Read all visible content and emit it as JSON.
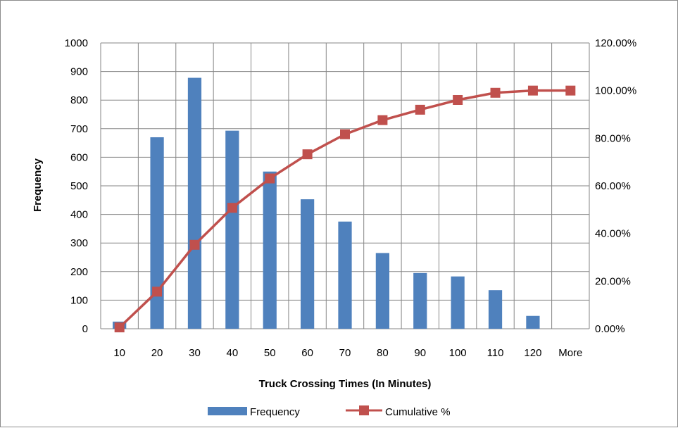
{
  "chart_data": {
    "type": "bar",
    "xlabel": "Truck Crossing Times (In Minutes)",
    "ylabel": "Frequency",
    "categories": [
      "10",
      "20",
      "30",
      "40",
      "50",
      "60",
      "70",
      "80",
      "90",
      "100",
      "110",
      "120",
      "More"
    ],
    "series": [
      {
        "name": "Frequency",
        "type": "bar",
        "axis": "left",
        "color": "#4f81bd",
        "values": [
          25,
          670,
          878,
          693,
          550,
          453,
          375,
          265,
          195,
          183,
          135,
          45,
          0
        ]
      },
      {
        "name": "Cumulative %",
        "type": "line",
        "axis": "right",
        "color": "#c0504d",
        "marker": "square",
        "values": [
          0.56,
          15.57,
          35.24,
          50.77,
          63.1,
          73.25,
          81.65,
          87.59,
          91.96,
          96.06,
          99.08,
          100.0,
          100.0
        ]
      }
    ],
    "ylim": [
      0,
      1000
    ],
    "y_ticks": [
      0,
      100,
      200,
      300,
      400,
      500,
      600,
      700,
      800,
      900,
      1000
    ],
    "y2lim": [
      0,
      120
    ],
    "y2_ticks": [
      "0.00%",
      "20.00%",
      "40.00%",
      "60.00%",
      "80.00%",
      "100.00%",
      "120.00%"
    ],
    "grid": true,
    "legend_position": "bottom"
  }
}
